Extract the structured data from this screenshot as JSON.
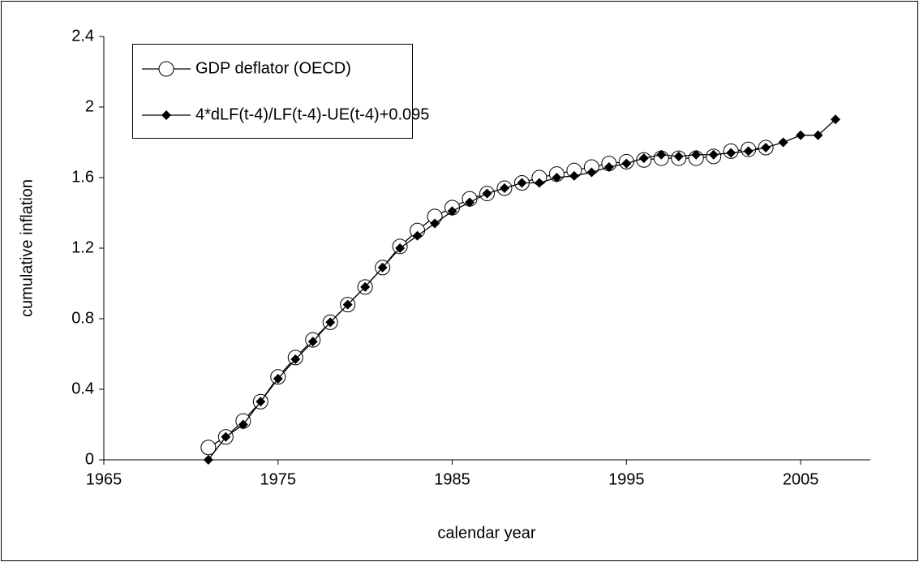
{
  "chart_data": {
    "type": "line",
    "xlabel": "calendar year",
    "ylabel": "cumulative inflation",
    "xlim": [
      1965,
      2009
    ],
    "xticks": [
      1965,
      1975,
      1985,
      1995,
      2005
    ],
    "ylim": [
      0,
      2.4
    ],
    "yticks": [
      0,
      0.4,
      0.8,
      1.2,
      1.6,
      2,
      2.4
    ],
    "legend": "top-left",
    "series": [
      {
        "name": "GDP deflator (OECD)",
        "color": "#000000",
        "marker": "circle",
        "x": [
          1971,
          1972,
          1973,
          1974,
          1975,
          1976,
          1977,
          1978,
          1979,
          1980,
          1981,
          1982,
          1983,
          1984,
          1985,
          1986,
          1987,
          1988,
          1989,
          1990,
          1991,
          1992,
          1993,
          1994,
          1995,
          1996,
          1997,
          1998,
          1999,
          2000,
          2001,
          2002,
          2003
        ],
        "values": [
          0.07,
          0.13,
          0.22,
          0.33,
          0.47,
          0.58,
          0.68,
          0.78,
          0.88,
          0.98,
          1.09,
          1.21,
          1.3,
          1.38,
          1.43,
          1.48,
          1.51,
          1.54,
          1.57,
          1.6,
          1.62,
          1.64,
          1.66,
          1.68,
          1.69,
          1.7,
          1.71,
          1.71,
          1.71,
          1.72,
          1.75,
          1.76,
          1.77
        ]
      },
      {
        "name": "4*dLF(t-4)/LF(t-4)-UE(t-4)+0.095",
        "color": "#000000",
        "marker": "diamond",
        "x": [
          1971,
          1972,
          1973,
          1974,
          1975,
          1976,
          1977,
          1978,
          1979,
          1980,
          1981,
          1982,
          1983,
          1984,
          1985,
          1986,
          1987,
          1988,
          1989,
          1990,
          1991,
          1992,
          1993,
          1994,
          1995,
          1996,
          1997,
          1998,
          1999,
          2000,
          2001,
          2002,
          2003,
          2004,
          2005,
          2006,
          2007
        ],
        "values": [
          0.0,
          0.13,
          0.2,
          0.33,
          0.46,
          0.57,
          0.67,
          0.78,
          0.88,
          0.98,
          1.09,
          1.2,
          1.27,
          1.34,
          1.41,
          1.46,
          1.51,
          1.54,
          1.57,
          1.57,
          1.6,
          1.61,
          1.63,
          1.66,
          1.68,
          1.71,
          1.73,
          1.72,
          1.73,
          1.73,
          1.74,
          1.75,
          1.77,
          1.8,
          1.84,
          1.84,
          1.93
        ]
      }
    ]
  }
}
